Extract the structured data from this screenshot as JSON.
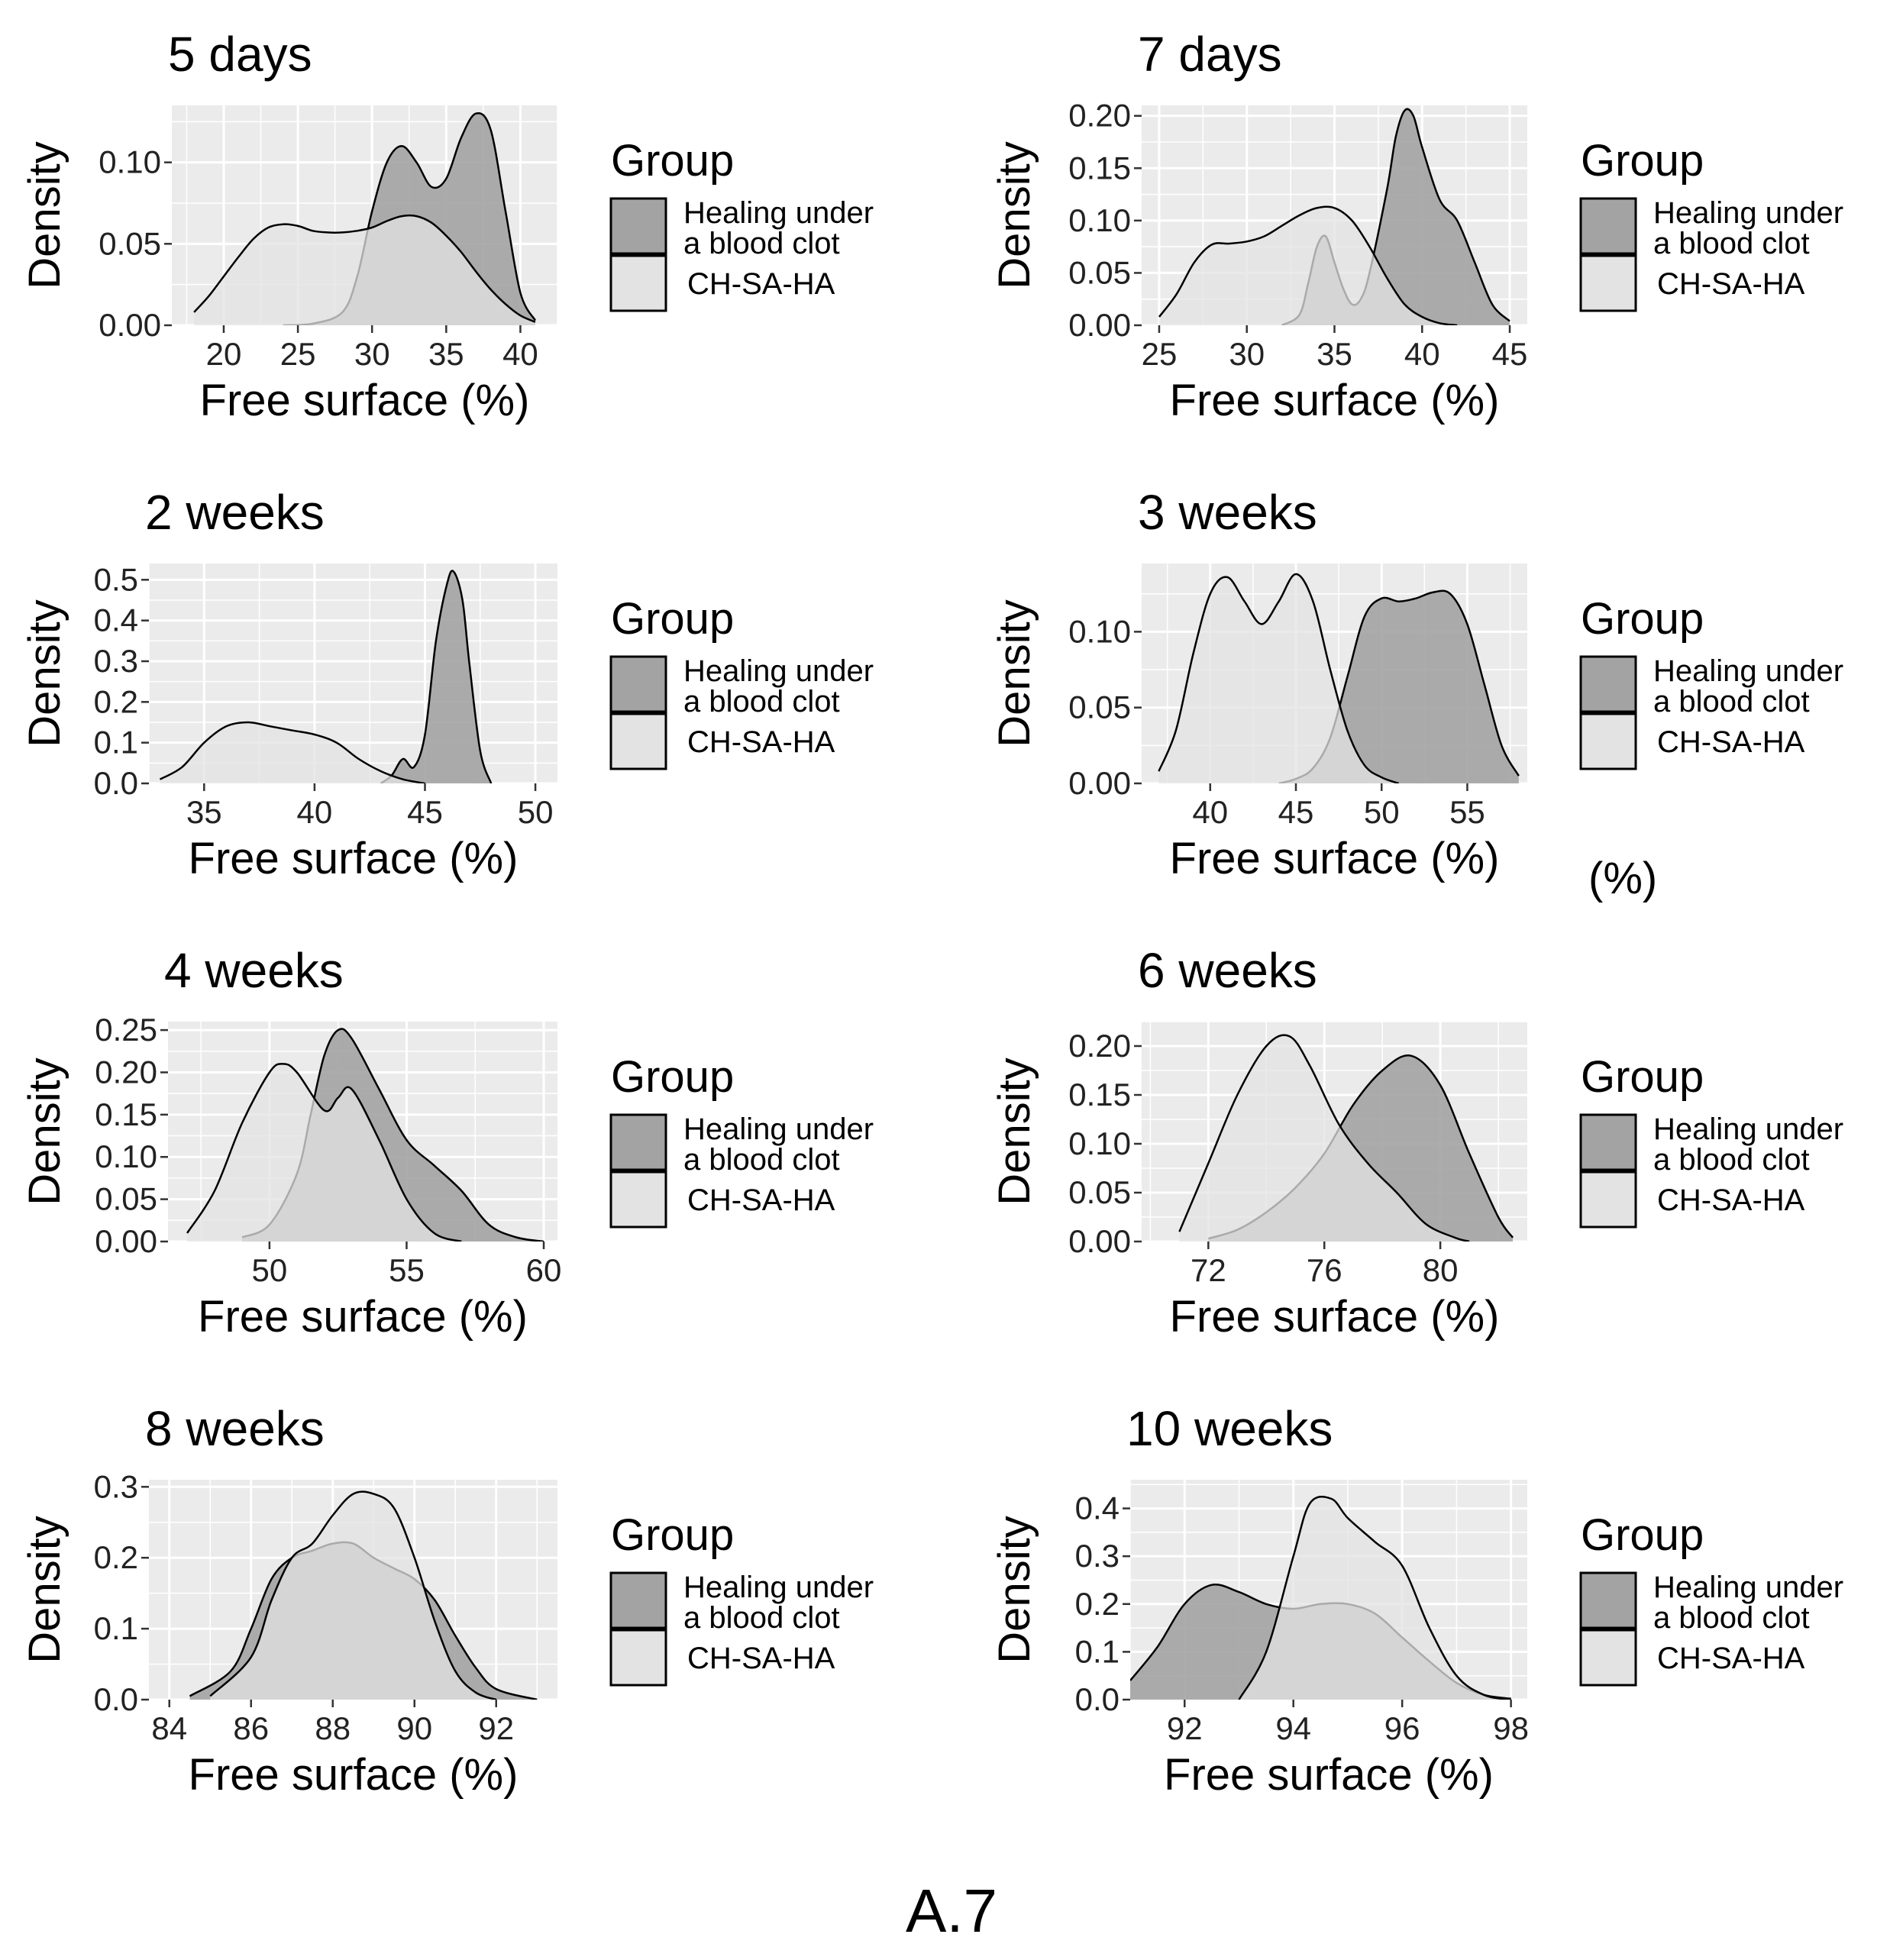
{
  "figure": {
    "caption": "A.7",
    "stray_label": "(%)"
  },
  "legend": {
    "title": "Group",
    "items": [
      {
        "label_line1": "Healing under",
        "label_line2": "a blood clot",
        "color": "#a3a3a3"
      },
      {
        "label_line1": "CH-SA-HA",
        "label_line2": "",
        "color": "#e3e3e3"
      }
    ]
  },
  "colors": {
    "panel_background": "#ebebeb",
    "grid": "#ffffff",
    "blood_clot_fill": "#a3a3a3",
    "ch_sa_ha_fill": "#e3e3e3",
    "outline": "#000000"
  },
  "chart_data": [
    {
      "type": "area",
      "title": "5 days",
      "xlabel": "Free surface (%)",
      "ylabel": "Density",
      "xlim": [
        16.5,
        42.5
      ],
      "ylim": [
        0,
        0.135
      ],
      "xticks": [
        "20",
        "25",
        "30",
        "35",
        "40"
      ],
      "xtick_values": [
        20,
        25,
        30,
        35,
        40
      ],
      "yticks": [
        "0.00",
        "0.05",
        "0.10"
      ],
      "ytick_values": [
        0,
        0.05,
        0.1
      ],
      "series": [
        {
          "name": "Healing under a blood clot",
          "x": [
            24,
            26,
            28,
            29,
            30,
            31,
            32,
            33,
            34,
            35,
            36,
            37,
            38,
            39,
            40,
            41
          ],
          "y": [
            0,
            0.001,
            0.008,
            0.03,
            0.07,
            0.1,
            0.11,
            0.1,
            0.085,
            0.09,
            0.115,
            0.13,
            0.12,
            0.07,
            0.02,
            0.003
          ]
        },
        {
          "name": "CH-SA-HA",
          "x": [
            18,
            19,
            20,
            21,
            22,
            23,
            24,
            25,
            26,
            27,
            28,
            29,
            30,
            31,
            32,
            33,
            34,
            35,
            36,
            37,
            38,
            39,
            40,
            41
          ],
          "y": [
            0.008,
            0.018,
            0.03,
            0.042,
            0.053,
            0.06,
            0.062,
            0.061,
            0.058,
            0.057,
            0.057,
            0.058,
            0.06,
            0.064,
            0.067,
            0.067,
            0.063,
            0.055,
            0.045,
            0.033,
            0.022,
            0.013,
            0.006,
            0.002
          ]
        }
      ]
    },
    {
      "type": "area",
      "title": "7 days",
      "xlabel": "Free surface (%)",
      "ylabel": "Density",
      "xlim": [
        24,
        46
      ],
      "ylim": [
        0,
        0.21
      ],
      "xticks": [
        "25",
        "30",
        "35",
        "40",
        "45"
      ],
      "xtick_values": [
        25,
        30,
        35,
        40,
        45
      ],
      "yticks": [
        "0.00",
        "0.05",
        "0.10",
        "0.15",
        "0.20"
      ],
      "ytick_values": [
        0,
        0.05,
        0.1,
        0.15,
        0.2
      ],
      "series": [
        {
          "name": "Healing under a blood clot",
          "x": [
            32,
            33,
            33.5,
            34,
            34.5,
            35,
            35.5,
            36,
            36.5,
            37,
            38,
            38.5,
            39,
            39.5,
            40,
            41,
            42,
            43,
            44,
            45
          ],
          "y": [
            0,
            0.01,
            0.04,
            0.075,
            0.085,
            0.06,
            0.035,
            0.02,
            0.025,
            0.05,
            0.13,
            0.18,
            0.205,
            0.2,
            0.17,
            0.12,
            0.1,
            0.06,
            0.02,
            0.004
          ]
        },
        {
          "name": "CH-SA-HA",
          "x": [
            25,
            26,
            27,
            28,
            29,
            30,
            31,
            32,
            33,
            34,
            35,
            36,
            37,
            38,
            39,
            40,
            41,
            42
          ],
          "y": [
            0.008,
            0.03,
            0.06,
            0.077,
            0.078,
            0.08,
            0.085,
            0.095,
            0.105,
            0.112,
            0.112,
            0.1,
            0.075,
            0.045,
            0.02,
            0.008,
            0.002,
            0
          ]
        }
      ]
    },
    {
      "type": "area",
      "title": "2 weeks",
      "xlabel": "Free surface (%)",
      "ylabel": "Density",
      "xlim": [
        32.5,
        51
      ],
      "ylim": [
        0,
        0.54
      ],
      "xticks": [
        "35",
        "40",
        "45",
        "50"
      ],
      "xtick_values": [
        35,
        40,
        45,
        50
      ],
      "yticks": [
        "0.0",
        "0.1",
        "0.2",
        "0.3",
        "0.4",
        "0.5"
      ],
      "ytick_values": [
        0,
        0.1,
        0.2,
        0.3,
        0.4,
        0.5
      ],
      "series": [
        {
          "name": "Healing under a blood clot",
          "x": [
            43,
            43.5,
            44,
            44.5,
            45,
            45.5,
            46,
            46.3,
            46.7,
            47,
            47.5,
            48
          ],
          "y": [
            0,
            0.02,
            0.06,
            0.04,
            0.12,
            0.35,
            0.49,
            0.52,
            0.45,
            0.3,
            0.08,
            0
          ]
        },
        {
          "name": "CH-SA-HA",
          "x": [
            33,
            34,
            35,
            36,
            37,
            38,
            39,
            40,
            41,
            42,
            43,
            44,
            45
          ],
          "y": [
            0.01,
            0.04,
            0.1,
            0.14,
            0.15,
            0.14,
            0.13,
            0.12,
            0.1,
            0.06,
            0.03,
            0.01,
            0
          ]
        }
      ]
    },
    {
      "type": "area",
      "title": "3 weeks",
      "xlabel": "Free surface (%)",
      "ylabel": "Density",
      "xlim": [
        36,
        58.5
      ],
      "ylim": [
        0,
        0.145
      ],
      "xticks": [
        "40",
        "45",
        "50",
        "55"
      ],
      "xtick_values": [
        40,
        45,
        50,
        55
      ],
      "yticks": [
        "0.00",
        "0.05",
        "0.10"
      ],
      "ytick_values": [
        0,
        0.05,
        0.1
      ],
      "series": [
        {
          "name": "Healing under a blood clot",
          "x": [
            44,
            45,
            46,
            47,
            48,
            49,
            50,
            51,
            52,
            53,
            54,
            55,
            56,
            57,
            58
          ],
          "y": [
            0,
            0.003,
            0.01,
            0.03,
            0.07,
            0.11,
            0.122,
            0.12,
            0.122,
            0.126,
            0.125,
            0.105,
            0.065,
            0.025,
            0.005
          ]
        },
        {
          "name": "CH-SA-HA",
          "x": [
            37,
            38,
            39,
            40,
            41,
            42,
            43,
            44,
            45,
            46,
            47,
            48,
            49,
            50,
            51
          ],
          "y": [
            0.008,
            0.035,
            0.085,
            0.125,
            0.136,
            0.12,
            0.105,
            0.12,
            0.138,
            0.12,
            0.075,
            0.035,
            0.012,
            0.004,
            0
          ]
        }
      ]
    },
    {
      "type": "area",
      "title": "4 weeks",
      "xlabel": "Free surface (%)",
      "ylabel": "Density",
      "xlim": [
        46.3,
        60.5
      ],
      "ylim": [
        0,
        0.26
      ],
      "xticks": [
        "50",
        "55",
        "60"
      ],
      "xtick_values": [
        50,
        55,
        60
      ],
      "yticks": [
        "0.00",
        "0.05",
        "0.10",
        "0.15",
        "0.20",
        "0.25"
      ],
      "ytick_values": [
        0,
        0.05,
        0.1,
        0.15,
        0.2,
        0.25
      ],
      "series": [
        {
          "name": "Healing under a blood clot",
          "x": [
            49,
            50,
            51,
            51.5,
            52,
            52.5,
            53,
            54,
            55,
            56,
            57,
            58,
            59,
            60
          ],
          "y": [
            0.005,
            0.02,
            0.08,
            0.15,
            0.22,
            0.25,
            0.24,
            0.18,
            0.12,
            0.09,
            0.06,
            0.02,
            0.005,
            0
          ]
        },
        {
          "name": "CH-SA-HA",
          "x": [
            47,
            48,
            49,
            50,
            50.5,
            51,
            52,
            52.5,
            53,
            54,
            55,
            56,
            57
          ],
          "y": [
            0.01,
            0.06,
            0.14,
            0.2,
            0.21,
            0.2,
            0.155,
            0.17,
            0.18,
            0.12,
            0.05,
            0.01,
            0
          ]
        }
      ]
    },
    {
      "type": "area",
      "title": "6 weeks",
      "xlabel": "Free surface (%)",
      "ylabel": "Density",
      "xlim": [
        69.7,
        83
      ],
      "ylim": [
        0,
        0.225
      ],
      "xticks": [
        "72",
        "76",
        "80"
      ],
      "xtick_values": [
        72,
        76,
        80
      ],
      "yticks": [
        "0.00",
        "0.05",
        "0.10",
        "0.15",
        "0.20"
      ],
      "ytick_values": [
        0,
        0.05,
        0.1,
        0.15,
        0.2
      ],
      "series": [
        {
          "name": "Healing under a blood clot",
          "x": [
            72,
            73,
            74,
            75,
            76,
            77,
            78,
            79,
            80,
            81,
            82,
            82.5
          ],
          "y": [
            0.003,
            0.012,
            0.03,
            0.055,
            0.09,
            0.14,
            0.175,
            0.19,
            0.16,
            0.09,
            0.025,
            0.004
          ]
        },
        {
          "name": "CH-SA-HA",
          "x": [
            71,
            72,
            73,
            74,
            74.8,
            75.5,
            76.5,
            77.5,
            78.5,
            79.5,
            80.5,
            81
          ],
          "y": [
            0.01,
            0.08,
            0.15,
            0.2,
            0.21,
            0.18,
            0.12,
            0.08,
            0.05,
            0.018,
            0.004,
            0
          ]
        }
      ]
    },
    {
      "type": "area",
      "title": "8 weeks",
      "xlabel": "Free surface (%)",
      "ylabel": "Density",
      "xlim": [
        83.5,
        93.5
      ],
      "ylim": [
        0,
        0.31
      ],
      "xticks": [
        "84",
        "86",
        "88",
        "90",
        "92"
      ],
      "xtick_values": [
        84,
        86,
        88,
        90,
        92
      ],
      "yticks": [
        "0.0",
        "0.1",
        "0.2",
        "0.3"
      ],
      "ytick_values": [
        0,
        0.1,
        0.2,
        0.3
      ],
      "series": [
        {
          "name": "Healing under a blood clot",
          "x": [
            84.5,
            85.5,
            86,
            86.5,
            87,
            87.5,
            88,
            88.5,
            89,
            89.5,
            90,
            90.5,
            91,
            91.5,
            92,
            93
          ],
          "y": [
            0.005,
            0.04,
            0.1,
            0.17,
            0.2,
            0.21,
            0.22,
            0.22,
            0.2,
            0.185,
            0.17,
            0.14,
            0.09,
            0.045,
            0.015,
            0
          ]
        },
        {
          "name": "CH-SA-HA",
          "x": [
            85,
            86,
            86.5,
            87,
            87.5,
            88,
            88.5,
            89,
            89.5,
            90,
            90.5,
            91,
            91.5,
            92
          ],
          "y": [
            0.005,
            0.06,
            0.14,
            0.2,
            0.22,
            0.26,
            0.29,
            0.29,
            0.27,
            0.2,
            0.11,
            0.04,
            0.01,
            0
          ]
        }
      ]
    },
    {
      "type": "area",
      "title": "10 weeks",
      "xlabel": "Free surface (%)",
      "ylabel": "Density",
      "xlim": [
        91,
        98.3
      ],
      "ylim": [
        0,
        0.46
      ],
      "xticks": [
        "92",
        "94",
        "96",
        "98"
      ],
      "xtick_values": [
        92,
        94,
        96,
        98
      ],
      "yticks": [
        "0.0",
        "0.1",
        "0.2",
        "0.3",
        "0.4"
      ],
      "ytick_values": [
        0,
        0.1,
        0.2,
        0.3,
        0.4
      ],
      "series": [
        {
          "name": "Healing under a blood clot",
          "x": [
            91,
            91.5,
            92,
            92.5,
            93,
            93.5,
            94,
            94.5,
            95,
            95.5,
            96,
            96.5,
            97,
            97.5,
            98
          ],
          "y": [
            0.04,
            0.11,
            0.2,
            0.24,
            0.225,
            0.2,
            0.19,
            0.2,
            0.2,
            0.18,
            0.13,
            0.08,
            0.035,
            0.01,
            0.002
          ]
        },
        {
          "name": "CH-SA-HA",
          "x": [
            93,
            93.5,
            94,
            94.3,
            94.7,
            95,
            95.5,
            96,
            96.5,
            97,
            97.5,
            98
          ],
          "y": [
            0,
            0.1,
            0.3,
            0.41,
            0.42,
            0.38,
            0.33,
            0.28,
            0.15,
            0.05,
            0.01,
            0
          ]
        }
      ]
    }
  ]
}
